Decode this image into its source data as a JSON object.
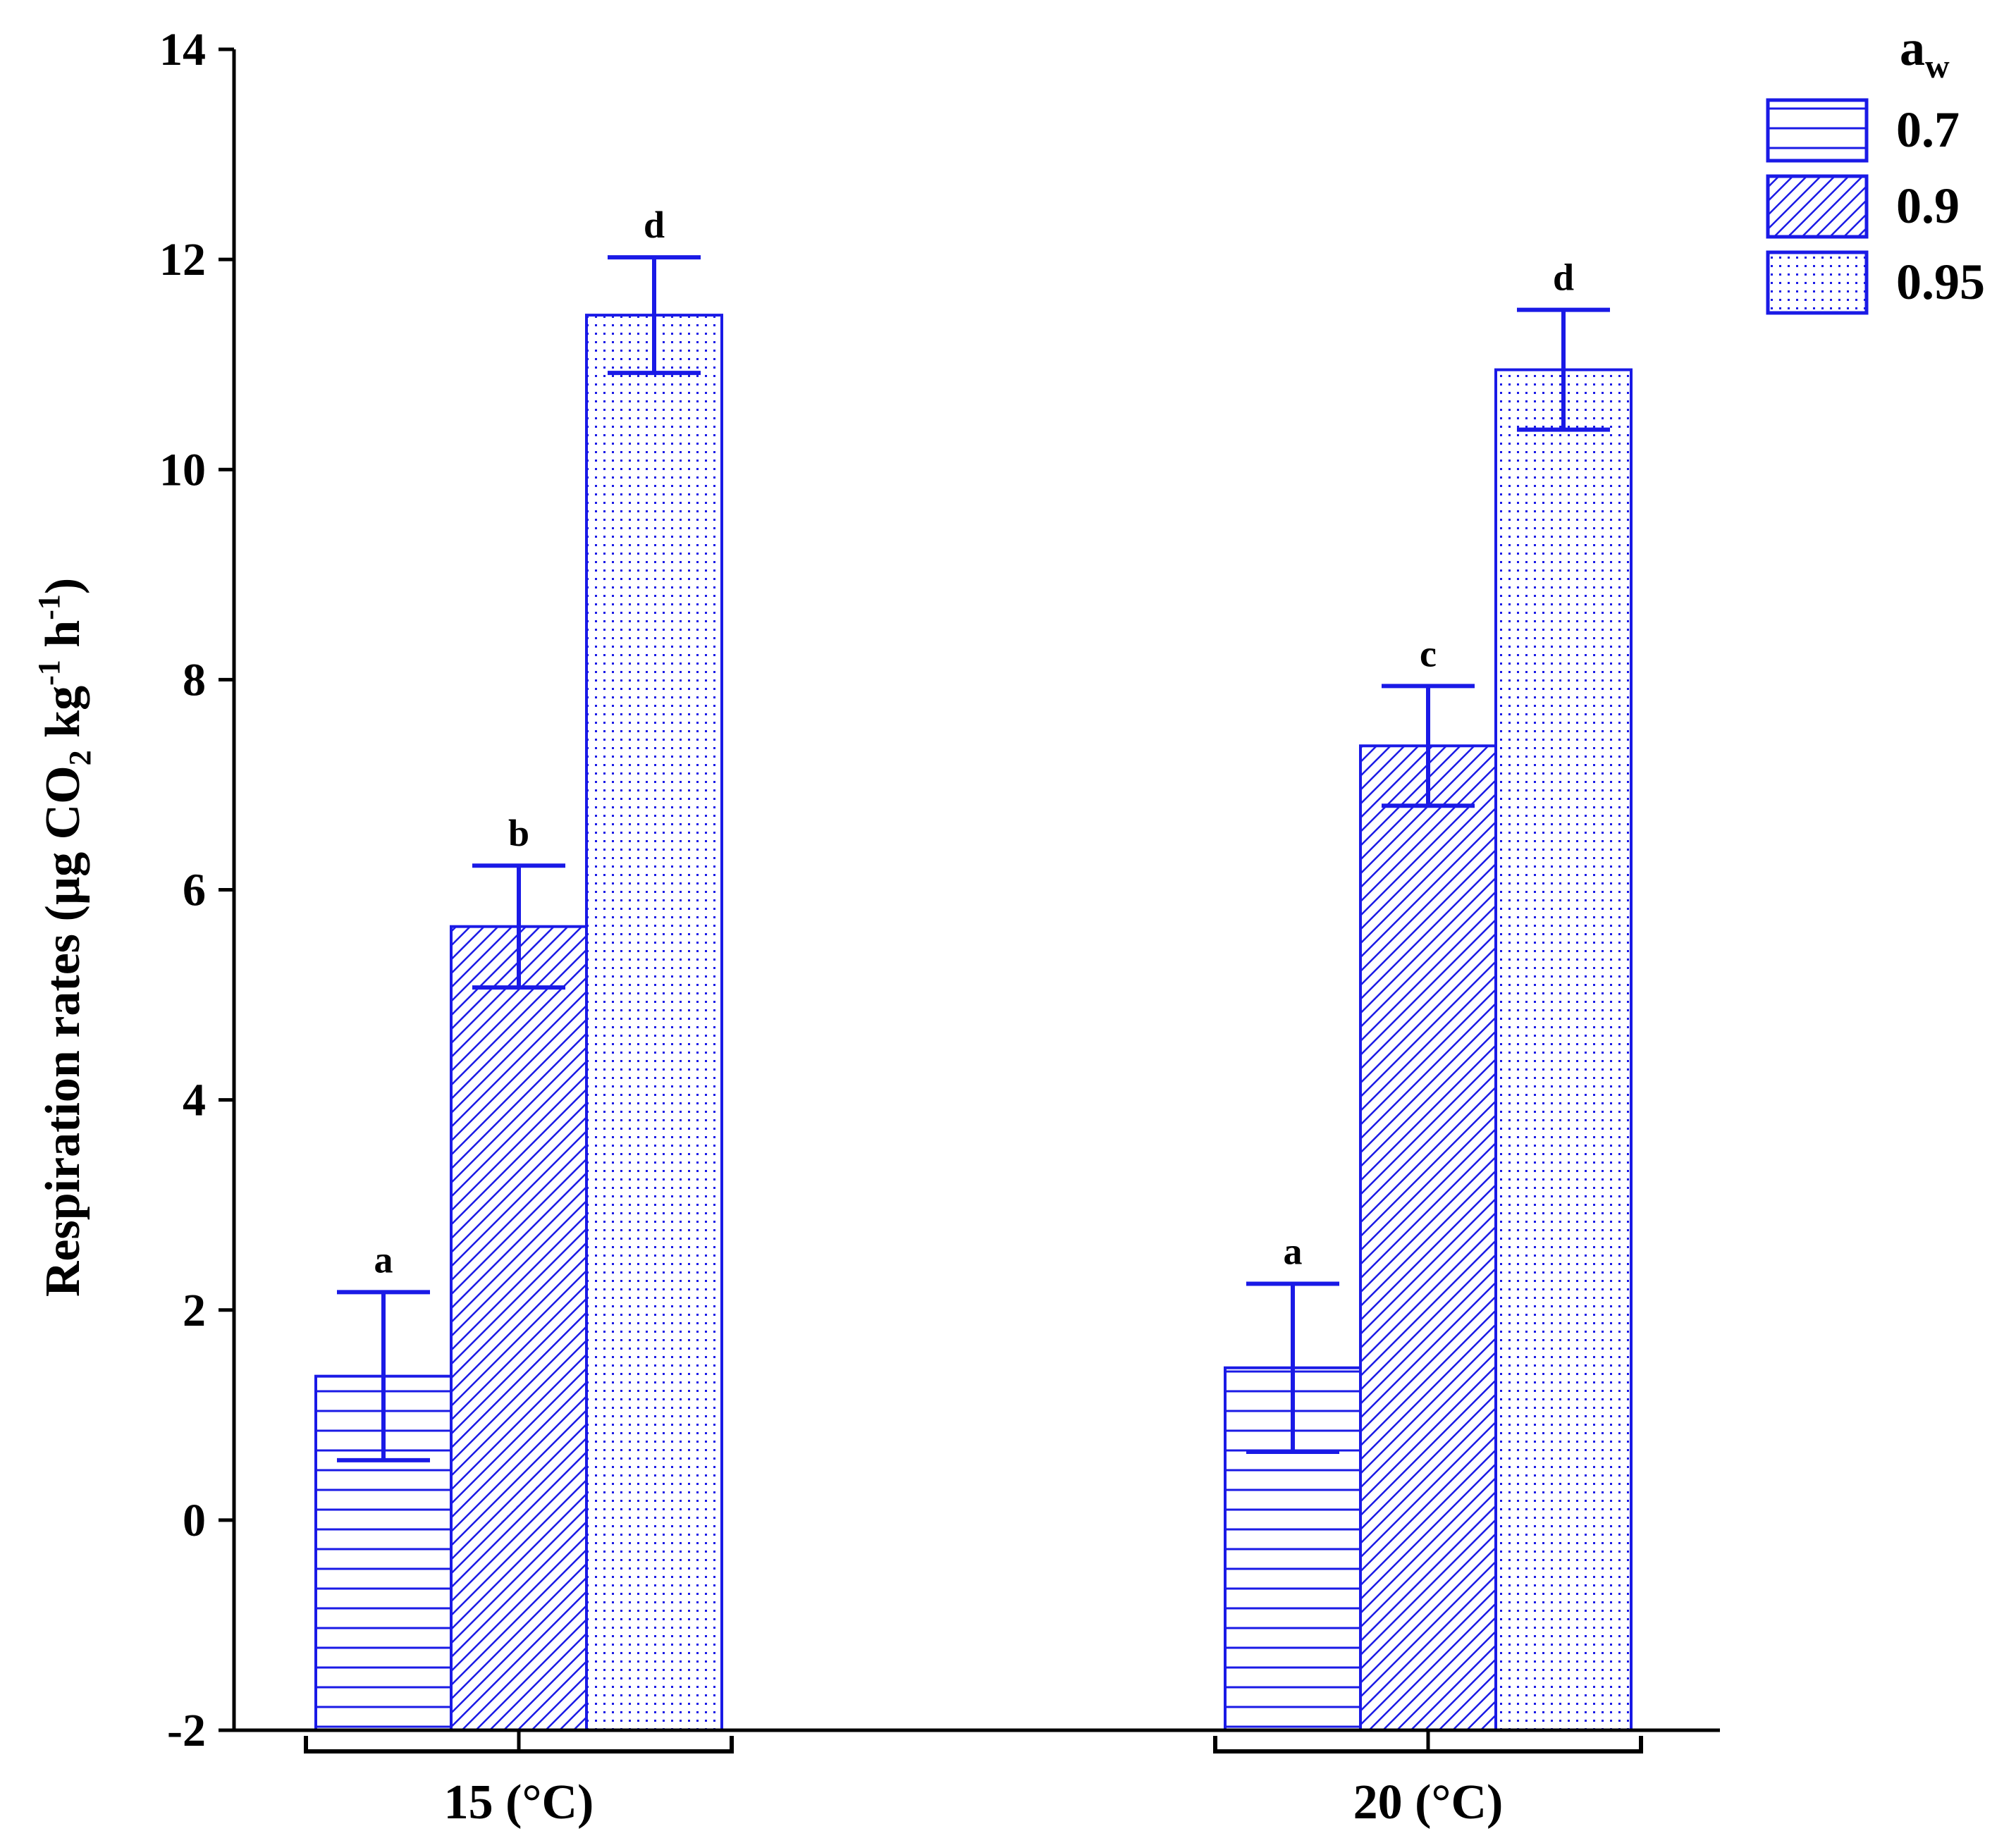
{
  "chart_data": {
    "type": "bar",
    "title": "",
    "xlabel": "",
    "ylabel": {
      "main": "Respiration rates (µg CO",
      "sub2": "2",
      "kg": " kg",
      "sup1": "-1",
      "h": " h",
      "sup2": "-1",
      "close": ")"
    },
    "ylim": [
      -2,
      14
    ],
    "yticks": [
      -2,
      0,
      2,
      4,
      6,
      8,
      10,
      12,
      14
    ],
    "categories": [
      "15 (°C)",
      "20 (°C)"
    ],
    "legend": {
      "title_main": "a",
      "title_sub": "w",
      "placement": "top-right"
    },
    "colors": {
      "series": "#1a1ae6",
      "axis": "#000000",
      "background": "#ffffff"
    },
    "series": [
      {
        "name": "0.7",
        "pattern": "horizontal-lines",
        "values": [
          1.37,
          1.45
        ],
        "errors": [
          0.8,
          0.8
        ],
        "letters": [
          "a",
          "a"
        ]
      },
      {
        "name": "0.9",
        "pattern": "diagonal-hatch",
        "values": [
          5.65,
          7.37
        ],
        "errors": [
          0.58,
          0.57
        ],
        "letters": [
          "b",
          "c"
        ]
      },
      {
        "name": "0.95",
        "pattern": "dots",
        "values": [
          11.47,
          10.95
        ],
        "errors": [
          0.55,
          0.57
        ],
        "letters": [
          "d",
          "d"
        ]
      }
    ]
  }
}
